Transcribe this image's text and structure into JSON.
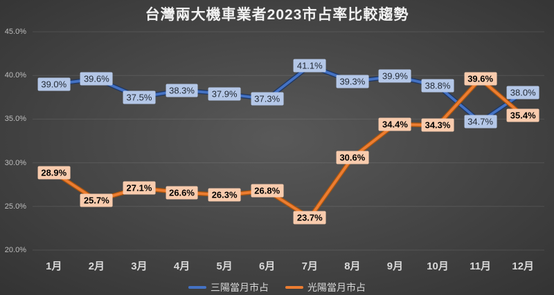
{
  "chart_data": {
    "type": "line",
    "title": "台灣兩大機車業者2023市占率比較趨勢",
    "categories": [
      "1月",
      "2月",
      "3月",
      "4月",
      "5月",
      "6月",
      "7月",
      "8月",
      "9月",
      "10月",
      "11月",
      "12月"
    ],
    "series": [
      {
        "name": "三陽當月市占",
        "values": [
          39.0,
          39.6,
          37.5,
          38.3,
          37.9,
          37.3,
          41.1,
          39.3,
          39.9,
          38.8,
          34.7,
          38.0
        ],
        "labels": [
          "39.0%",
          "39.6%",
          "37.5%",
          "38.3%",
          "37.9%",
          "37.3%",
          "41.1%",
          "39.3%",
          "39.9%",
          "38.8%",
          "34.7%",
          "38.0%"
        ],
        "line_color": "#4472C4",
        "line_edge_color": "#1F3864",
        "label_bg": "#B4C7E7",
        "label_text_color": "#222A35",
        "label_bold": false
      },
      {
        "name": "光陽當月市占",
        "values": [
          28.9,
          25.7,
          27.1,
          26.6,
          26.3,
          26.8,
          23.7,
          30.6,
          34.4,
          34.3,
          39.6,
          35.4
        ],
        "labels": [
          "28.9%",
          "25.7%",
          "27.1%",
          "26.6%",
          "26.3%",
          "26.8%",
          "23.7%",
          "30.6%",
          "34.4%",
          "34.3%",
          "39.6%",
          "35.4%"
        ],
        "line_color": "#ED7D31",
        "line_edge_color": "#A85510",
        "label_bg": "#F8CBAD",
        "label_text_color": "#000000",
        "label_bold": true
      }
    ],
    "y_axis": {
      "min": 20,
      "max": 45,
      "step": 5,
      "tick_labels": [
        "45.0%",
        "40.0%",
        "35.0%",
        "30.0%",
        "25.0%",
        "20.0%"
      ]
    },
    "grid": true,
    "legend_position": "bottom",
    "data_label_position": "center"
  },
  "colors": {
    "gridline": "rgba(255,255,255,0.10)",
    "y_tick_text": "#BFBFBF",
    "x_tick_text": "#D9D9D9",
    "title_text": "#F2F2F2",
    "legend_text": "#D9D9D9"
  }
}
